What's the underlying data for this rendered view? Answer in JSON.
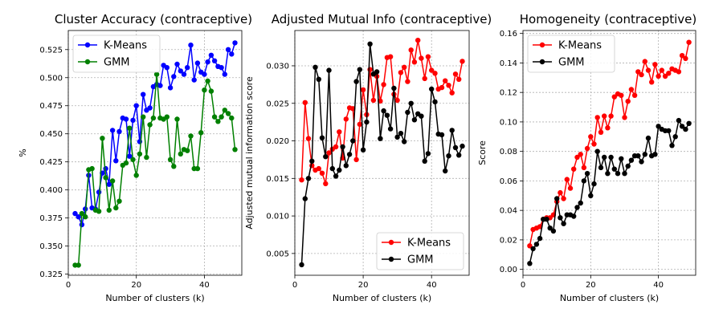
{
  "figure": {
    "background": "#ffffff",
    "colors": {
      "kmeans": "#ff0000",
      "gmm": "#000000",
      "kmeans_alt": "#0000ff",
      "gmm_alt": "#008000"
    }
  },
  "chart_data": [
    {
      "type": "line",
      "title": "Cluster Accuracy (contraceptive)",
      "xlabel": "Number of clusters (k)",
      "ylabel": "%",
      "xlim": [
        0,
        51
      ],
      "ylim": [
        0.324,
        0.542
      ],
      "xticks": [
        0,
        20,
        40
      ],
      "yticks": [
        0.325,
        0.35,
        0.375,
        0.4,
        0.425,
        0.45,
        0.475,
        0.5,
        0.525
      ],
      "ytick_labels": [
        "0.325",
        "0.350",
        "0.375",
        "0.400",
        "0.425",
        "0.450",
        "0.475",
        "0.500",
        "0.525"
      ],
      "grid": true,
      "legend": "top-left",
      "x": [
        2,
        3,
        4,
        5,
        6,
        7,
        8,
        9,
        10,
        11,
        12,
        13,
        14,
        15,
        16,
        17,
        18,
        19,
        20,
        21,
        22,
        23,
        24,
        25,
        26,
        27,
        28,
        29,
        30,
        31,
        32,
        33,
        34,
        35,
        36,
        37,
        38,
        39,
        40,
        41,
        42,
        43,
        44,
        45,
        46,
        47,
        48,
        49
      ],
      "series": [
        {
          "name": "K-Means",
          "color": "#0000ff",
          "values": [
            0.379,
            0.376,
            0.369,
            0.383,
            0.413,
            0.384,
            0.383,
            0.398,
            0.415,
            0.419,
            0.405,
            0.453,
            0.426,
            0.452,
            0.464,
            0.463,
            0.43,
            0.462,
            0.475,
            0.443,
            0.485,
            0.471,
            0.473,
            0.492,
            0.494,
            0.493,
            0.511,
            0.509,
            0.491,
            0.501,
            0.512,
            0.506,
            0.503,
            0.509,
            0.529,
            0.498,
            0.513,
            0.505,
            0.503,
            0.514,
            0.52,
            0.515,
            0.51,
            0.509,
            0.503,
            0.525,
            0.521,
            0.531
          ]
        },
        {
          "name": "GMM",
          "color": "#008000",
          "values": [
            0.333,
            0.333,
            0.379,
            0.376,
            0.418,
            0.419,
            0.382,
            0.381,
            0.446,
            0.411,
            0.382,
            0.408,
            0.384,
            0.39,
            0.422,
            0.424,
            0.455,
            0.427,
            0.413,
            0.432,
            0.465,
            0.429,
            0.458,
            0.464,
            0.503,
            0.464,
            0.463,
            0.465,
            0.427,
            0.421,
            0.463,
            0.432,
            0.436,
            0.435,
            0.448,
            0.419,
            0.419,
            0.451,
            0.489,
            0.497,
            0.488,
            0.465,
            0.461,
            0.465,
            0.471,
            0.468,
            0.464,
            0.436
          ]
        }
      ]
    },
    {
      "type": "line",
      "title": "Adjusted Mutual Info (contraceptive)",
      "xlabel": "Number of clusters (k)",
      "ylabel": "Adjusted mutual information score",
      "xlim": [
        0,
        51
      ],
      "ylim": [
        0.0021,
        0.0347
      ],
      "xticks": [
        0,
        20,
        40
      ],
      "yticks": [
        0.005,
        0.01,
        0.015,
        0.02,
        0.025,
        0.03
      ],
      "ytick_labels": [
        "0.005",
        "0.010",
        "0.015",
        "0.020",
        "0.025",
        "0.030"
      ],
      "grid": true,
      "legend": "bottom-right",
      "x": [
        2,
        3,
        4,
        5,
        6,
        7,
        8,
        9,
        10,
        11,
        12,
        13,
        14,
        15,
        16,
        17,
        18,
        19,
        20,
        21,
        22,
        23,
        24,
        25,
        26,
        27,
        28,
        29,
        30,
        31,
        32,
        33,
        34,
        35,
        36,
        37,
        38,
        39,
        40,
        41,
        42,
        43,
        44,
        45,
        46,
        47,
        48,
        49
      ],
      "series": [
        {
          "name": "K-Means",
          "color": "#ff0000",
          "values": [
            0.0148,
            0.0251,
            0.0203,
            0.0167,
            0.0161,
            0.0163,
            0.0157,
            0.0143,
            0.0184,
            0.0189,
            0.0192,
            0.0212,
            0.0177,
            0.0229,
            0.0244,
            0.0243,
            0.0175,
            0.0222,
            0.0268,
            0.0235,
            0.0295,
            0.0254,
            0.0286,
            0.0253,
            0.0275,
            0.0311,
            0.0312,
            0.0262,
            0.0254,
            0.0291,
            0.0298,
            0.0279,
            0.0321,
            0.0305,
            0.0334,
            0.031,
            0.0283,
            0.0312,
            0.0294,
            0.029,
            0.0269,
            0.0271,
            0.028,
            0.0274,
            0.0264,
            0.0289,
            0.0282,
            0.0306
          ]
        },
        {
          "name": "GMM",
          "color": "#000000",
          "values": [
            0.0035,
            0.0123,
            0.015,
            0.0173,
            0.0298,
            0.0282,
            0.0204,
            0.0179,
            0.0294,
            0.0163,
            0.0153,
            0.0161,
            0.0192,
            0.0167,
            0.0182,
            0.02,
            0.0279,
            0.0295,
            0.0188,
            0.0225,
            0.0329,
            0.0289,
            0.0292,
            0.0203,
            0.024,
            0.0234,
            0.0216,
            0.027,
            0.0205,
            0.021,
            0.0199,
            0.0238,
            0.025,
            0.0228,
            0.0236,
            0.0233,
            0.0173,
            0.0183,
            0.0269,
            0.0252,
            0.0209,
            0.0208,
            0.016,
            0.018,
            0.0214,
            0.0191,
            0.0181,
            0.0193
          ]
        }
      ]
    },
    {
      "type": "line",
      "title": "Homogeneity (contraceptive)",
      "xlabel": "Number of clusters (k)",
      "ylabel": "Score",
      "xlim": [
        0,
        51
      ],
      "ylim": [
        -0.004,
        0.162
      ],
      "xticks": [
        0,
        20,
        40
      ],
      "yticks": [
        0,
        0.02,
        0.04,
        0.06,
        0.08,
        0.1,
        0.12,
        0.14,
        0.16
      ],
      "ytick_labels": [
        "0.00",
        "0.02",
        "0.04",
        "0.06",
        "0.08",
        "0.10",
        "0.12",
        "0.14",
        "0.16"
      ],
      "grid": true,
      "legend": "top-left",
      "x": [
        2,
        3,
        4,
        5,
        6,
        7,
        8,
        9,
        10,
        11,
        12,
        13,
        14,
        15,
        16,
        17,
        18,
        19,
        20,
        21,
        22,
        23,
        24,
        25,
        26,
        27,
        28,
        29,
        30,
        31,
        32,
        33,
        34,
        35,
        36,
        37,
        38,
        39,
        40,
        41,
        42,
        43,
        44,
        45,
        46,
        47,
        48,
        49
      ],
      "series": [
        {
          "name": "K-Means",
          "color": "#ff0000",
          "values": [
            0.016,
            0.027,
            0.028,
            0.029,
            0.034,
            0.035,
            0.035,
            0.037,
            0.046,
            0.052,
            0.048,
            0.061,
            0.055,
            0.068,
            0.076,
            0.078,
            0.069,
            0.082,
            0.09,
            0.085,
            0.103,
            0.093,
            0.104,
            0.096,
            0.104,
            0.117,
            0.119,
            0.118,
            0.103,
            0.114,
            0.122,
            0.118,
            0.134,
            0.132,
            0.141,
            0.135,
            0.127,
            0.139,
            0.131,
            0.135,
            0.131,
            0.133,
            0.136,
            0.135,
            0.134,
            0.145,
            0.143,
            0.154
          ]
        },
        {
          "name": "GMM",
          "color": "#000000",
          "values": [
            0.004,
            0.014,
            0.017,
            0.021,
            0.034,
            0.034,
            0.028,
            0.026,
            0.048,
            0.035,
            0.031,
            0.037,
            0.037,
            0.036,
            0.042,
            0.045,
            0.06,
            0.065,
            0.05,
            0.058,
            0.08,
            0.069,
            0.076,
            0.065,
            0.076,
            0.068,
            0.065,
            0.075,
            0.065,
            0.07,
            0.074,
            0.077,
            0.077,
            0.073,
            0.078,
            0.089,
            0.077,
            0.078,
            0.097,
            0.095,
            0.094,
            0.094,
            0.084,
            0.09,
            0.101,
            0.097,
            0.095,
            0.099
          ]
        }
      ]
    }
  ]
}
